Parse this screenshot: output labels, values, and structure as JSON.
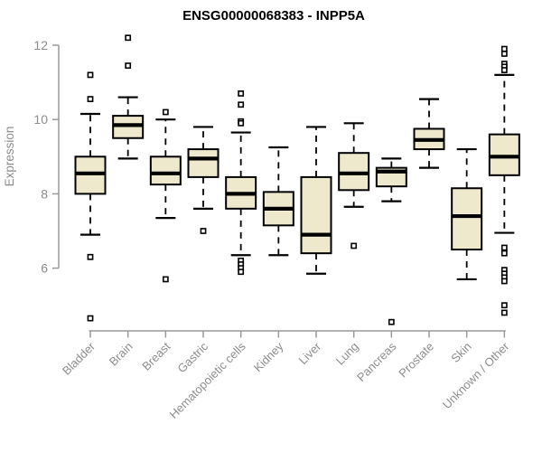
{
  "page": {
    "title": "ENSG00000068383 - INPP5A"
  },
  "chart_data": {
    "type": "boxplot",
    "title": "ENSG00000068383 - INPP5A",
    "ylabel": "Expression",
    "xlabel": "",
    "yticks": [
      6,
      8,
      10,
      12
    ],
    "ylim": [
      4.2,
      12.4
    ],
    "grid": false,
    "legend": "none",
    "box_fill": "#EEE8CD",
    "box_border": "#000000",
    "median_color": "#000000",
    "axis_color": "#999999",
    "label_color": "#8C8C8C",
    "title_color": "#000000",
    "categories": [
      "Bladder",
      "Brain",
      "Breast",
      "Gastric",
      "Hematopoietic cells",
      "Kidney",
      "Liver",
      "Lung",
      "Pancreas",
      "Prostate",
      "Skin",
      "Unknown / Other"
    ],
    "series": [
      {
        "name": "Bladder",
        "whisker_low": 6.9,
        "q1": 8.0,
        "median": 8.55,
        "q3": 9.0,
        "whisker_high": 10.15,
        "outliers": [
          11.2,
          10.55,
          6.3,
          4.65
        ]
      },
      {
        "name": "Brain",
        "whisker_low": 8.95,
        "q1": 9.5,
        "median": 9.85,
        "q3": 10.1,
        "whisker_high": 10.6,
        "outliers": [
          12.2,
          11.45
        ]
      },
      {
        "name": "Breast",
        "whisker_low": 7.35,
        "q1": 8.25,
        "median": 8.55,
        "q3": 9.0,
        "whisker_high": 10.0,
        "outliers": [
          10.2,
          5.7
        ]
      },
      {
        "name": "Gastric",
        "whisker_low": 7.6,
        "q1": 8.45,
        "median": 8.95,
        "q3": 9.2,
        "whisker_high": 9.8,
        "outliers": [
          7.0
        ]
      },
      {
        "name": "Hematopoietic cells",
        "whisker_low": 6.35,
        "q1": 7.6,
        "median": 8.0,
        "q3": 8.45,
        "whisker_high": 9.65,
        "outliers": [
          10.7,
          10.4,
          9.95,
          9.9,
          6.2,
          6.1,
          6.0,
          5.9
        ]
      },
      {
        "name": "Kidney",
        "whisker_low": 6.35,
        "q1": 7.15,
        "median": 7.6,
        "q3": 8.05,
        "whisker_high": 9.25,
        "outliers": []
      },
      {
        "name": "Liver",
        "whisker_low": 5.85,
        "q1": 6.4,
        "median": 6.9,
        "q3": 8.45,
        "whisker_high": 9.8,
        "outliers": []
      },
      {
        "name": "Lung",
        "whisker_low": 7.65,
        "q1": 8.1,
        "median": 8.55,
        "q3": 9.1,
        "whisker_high": 9.9,
        "outliers": [
          6.6
        ]
      },
      {
        "name": "Pancreas",
        "whisker_low": 7.8,
        "q1": 8.2,
        "median": 8.6,
        "q3": 8.7,
        "whisker_high": 8.95,
        "outliers": [
          4.55
        ]
      },
      {
        "name": "Prostate",
        "whisker_low": 8.7,
        "q1": 9.2,
        "median": 9.45,
        "q3": 9.75,
        "whisker_high": 10.55,
        "outliers": []
      },
      {
        "name": "Skin",
        "whisker_low": 5.7,
        "q1": 6.5,
        "median": 7.4,
        "q3": 8.15,
        "whisker_high": 9.2,
        "outliers": []
      },
      {
        "name": "Unknown / Other",
        "whisker_low": 6.95,
        "q1": 8.5,
        "median": 9.0,
        "q3": 9.6,
        "whisker_high": 11.2,
        "outliers": [
          11.9,
          11.77,
          11.5,
          11.42,
          11.33,
          6.55,
          6.4,
          5.95,
          5.85,
          5.75,
          5.65,
          5.0,
          4.8
        ]
      }
    ]
  }
}
